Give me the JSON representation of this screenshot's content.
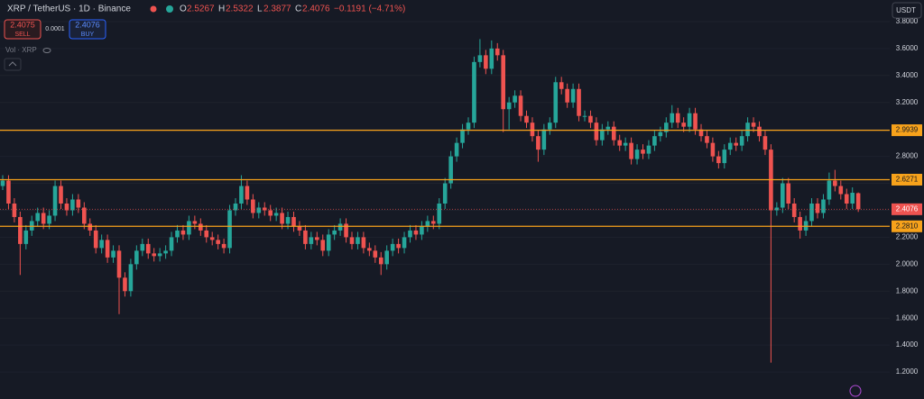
{
  "header": {
    "symbol": "XRP / TetherUS · 1D · Binance",
    "o_label": "O",
    "h_label": "H",
    "l_label": "L",
    "c_label": "C",
    "change": "−0.1191 (−4.71%)",
    "sell_price": "2.4075",
    "sell": "SELL",
    "spread": "0.0001",
    "buy_price": "2.4076",
    "buy": "BUY",
    "volume": "Vol · XRP",
    "currency": "USDT"
  },
  "chart_data": {
    "type": "candlestick",
    "up_color": "#26a69a",
    "down_color": "#ef5350",
    "grid": true,
    "ylim": [
      1.0,
      3.96
    ],
    "yticks": [
      {
        "value": 1.2,
        "label": "1.2000"
      },
      {
        "value": 1.4,
        "label": "1.4000"
      },
      {
        "value": 1.6,
        "label": "1.6000"
      },
      {
        "value": 1.8,
        "label": "1.8000"
      },
      {
        "value": 2.0,
        "label": "2.0000"
      },
      {
        "value": 2.2,
        "label": "2.2000"
      },
      {
        "value": 2.4,
        "label": "2.4000"
      },
      {
        "value": 2.6,
        "label": "2.6000"
      },
      {
        "value": 2.8,
        "label": "2.8000"
      },
      {
        "value": 3.0,
        "label": "3.0000"
      },
      {
        "value": 3.2,
        "label": "3.2000"
      },
      {
        "value": 3.4,
        "label": "3.4000"
      },
      {
        "value": 3.6,
        "label": "3.6000"
      },
      {
        "value": 3.8,
        "label": "3.8000"
      }
    ],
    "price_lines": [
      {
        "value": 2.9939,
        "color": "#f7a21b"
      },
      {
        "value": 2.6271,
        "color": "#f7a21b"
      },
      {
        "value": {
          "value": 2.281,
          "label": "2.2810"
        },
        "color": "#f7a21b"
      }
    ],
    "ohlc": [
      [
        2.58,
        2.66,
        2.55,
        2.62
      ],
      [
        2.62,
        2.66,
        2.41,
        2.45
      ],
      [
        2.45,
        2.49,
        2.31,
        2.35
      ],
      [
        2.35,
        2.39,
        1.92,
        2.15
      ],
      [
        2.15,
        2.29,
        2.11,
        2.25
      ],
      [
        2.25,
        2.36,
        2.21,
        2.32
      ],
      [
        2.32,
        2.42,
        2.28,
        2.38
      ],
      [
        2.38,
        2.42,
        2.26,
        2.3
      ],
      [
        2.3,
        2.4,
        2.26,
        2.36
      ],
      [
        2.36,
        2.62,
        2.32,
        2.58
      ],
      [
        2.58,
        2.62,
        2.41,
        2.45
      ],
      [
        2.45,
        2.49,
        2.36,
        2.4
      ],
      [
        2.4,
        2.52,
        2.36,
        2.48
      ],
      [
        2.48,
        2.52,
        2.38,
        2.42
      ],
      [
        2.42,
        2.46,
        2.26,
        2.3
      ],
      [
        2.3,
        2.34,
        2.21,
        2.25
      ],
      [
        2.25,
        2.29,
        2.08,
        2.12
      ],
      [
        2.12,
        2.22,
        2.08,
        2.18
      ],
      [
        2.18,
        2.22,
        2.01,
        2.05
      ],
      [
        2.05,
        2.14,
        2.01,
        2.1
      ],
      [
        2.1,
        2.14,
        1.63,
        1.9
      ],
      [
        1.9,
        1.94,
        1.76,
        1.8
      ],
      [
        1.8,
        2.04,
        1.76,
        2.0
      ],
      [
        2.0,
        2.14,
        1.96,
        2.1
      ],
      [
        2.1,
        2.19,
        2.06,
        2.15
      ],
      [
        2.15,
        2.19,
        2.04,
        2.08
      ],
      [
        2.08,
        2.12,
        2.02,
        2.06
      ],
      [
        2.06,
        2.12,
        2.02,
        2.08
      ],
      [
        2.08,
        2.14,
        2.04,
        2.1
      ],
      [
        2.1,
        2.24,
        2.06,
        2.2
      ],
      [
        2.2,
        2.29,
        2.16,
        2.25
      ],
      [
        2.25,
        2.29,
        2.18,
        2.22
      ],
      [
        2.22,
        2.36,
        2.18,
        2.32
      ],
      [
        2.32,
        2.36,
        2.26,
        2.3
      ],
      [
        2.3,
        2.34,
        2.21,
        2.25
      ],
      [
        2.25,
        2.29,
        2.16,
        2.2
      ],
      [
        2.2,
        2.24,
        2.14,
        2.18
      ],
      [
        2.18,
        2.22,
        2.11,
        2.15
      ],
      [
        2.15,
        2.19,
        2.08,
        2.12
      ],
      [
        2.12,
        2.44,
        2.08,
        2.4
      ],
      [
        2.4,
        2.49,
        2.36,
        2.45
      ],
      [
        2.45,
        2.66,
        2.41,
        2.58
      ],
      [
        2.58,
        2.62,
        2.44,
        2.48
      ],
      [
        2.48,
        2.52,
        2.34,
        2.38
      ],
      [
        2.38,
        2.46,
        2.34,
        2.42
      ],
      [
        2.42,
        2.46,
        2.36,
        2.4
      ],
      [
        2.4,
        2.44,
        2.32,
        2.36
      ],
      [
        2.36,
        2.42,
        2.32,
        2.38
      ],
      [
        2.38,
        2.42,
        2.26,
        2.3
      ],
      [
        2.3,
        2.39,
        2.26,
        2.35
      ],
      [
        2.35,
        2.39,
        2.24,
        2.28
      ],
      [
        2.28,
        2.32,
        2.21,
        2.25
      ],
      [
        2.25,
        2.29,
        2.11,
        2.15
      ],
      [
        2.15,
        2.24,
        2.11,
        2.2
      ],
      [
        2.2,
        2.24,
        2.14,
        2.18
      ],
      [
        2.18,
        2.22,
        2.06,
        2.1
      ],
      [
        2.1,
        2.26,
        2.06,
        2.22
      ],
      [
        2.22,
        2.29,
        2.18,
        2.25
      ],
      [
        2.25,
        2.34,
        2.21,
        2.3
      ],
      [
        2.3,
        2.34,
        2.16,
        2.2
      ],
      [
        2.2,
        2.24,
        2.11,
        2.15
      ],
      [
        2.15,
        2.24,
        2.11,
        2.2
      ],
      [
        2.2,
        2.24,
        2.08,
        2.12
      ],
      [
        2.12,
        2.16,
        2.06,
        2.1
      ],
      [
        2.1,
        2.14,
        2.01,
        2.05
      ],
      [
        2.05,
        2.09,
        1.92,
        2.0
      ],
      [
        2.0,
        2.14,
        1.96,
        2.1
      ],
      [
        2.1,
        2.19,
        2.06,
        2.15
      ],
      [
        2.15,
        2.19,
        2.08,
        2.12
      ],
      [
        2.12,
        2.24,
        2.08,
        2.2
      ],
      [
        2.2,
        2.29,
        2.16,
        2.25
      ],
      [
        2.25,
        2.29,
        2.18,
        2.22
      ],
      [
        2.22,
        2.32,
        2.18,
        2.28
      ],
      [
        2.28,
        2.36,
        2.24,
        2.32
      ],
      [
        2.32,
        2.36,
        2.26,
        2.3
      ],
      [
        2.3,
        2.49,
        2.26,
        2.45
      ],
      [
        2.45,
        2.64,
        2.41,
        2.6
      ],
      [
        2.6,
        2.84,
        2.56,
        2.8
      ],
      [
        2.8,
        2.94,
        2.76,
        2.9
      ],
      [
        2.9,
        3.04,
        2.86,
        3.0
      ],
      [
        3.0,
        3.09,
        2.96,
        3.05
      ],
      [
        3.05,
        3.54,
        3.01,
        3.5
      ],
      [
        3.5,
        3.67,
        3.46,
        3.55
      ],
      [
        3.55,
        3.59,
        3.41,
        3.45
      ],
      [
        3.45,
        3.66,
        3.41,
        3.6
      ],
      [
        3.6,
        3.64,
        3.51,
        3.55
      ],
      [
        3.55,
        3.59,
        2.98,
        3.15
      ],
      [
        3.15,
        3.24,
        3.0,
        3.2
      ],
      [
        3.2,
        3.29,
        3.16,
        3.25
      ],
      [
        3.25,
        3.29,
        3.06,
        3.1
      ],
      [
        3.1,
        3.14,
        3.01,
        3.05
      ],
      [
        3.05,
        3.09,
        2.91,
        2.95
      ],
      [
        2.95,
        2.99,
        2.76,
        2.85
      ],
      [
        2.85,
        3.04,
        2.81,
        3.0
      ],
      [
        3.0,
        3.09,
        2.96,
        3.05
      ],
      [
        3.05,
        3.39,
        3.01,
        3.35
      ],
      [
        3.35,
        3.39,
        3.26,
        3.3
      ],
      [
        3.3,
        3.34,
        3.16,
        3.2
      ],
      [
        3.2,
        3.34,
        3.16,
        3.3
      ],
      [
        3.3,
        3.34,
        3.06,
        3.1
      ],
      [
        3.1,
        3.14,
        3.06,
        3.1
      ],
      [
        3.1,
        3.14,
        3.01,
        3.05
      ],
      [
        3.05,
        3.09,
        2.88,
        2.92
      ],
      [
        2.92,
        3.04,
        2.88,
        3.0
      ],
      [
        3.0,
        3.06,
        2.96,
        3.02
      ],
      [
        3.02,
        3.06,
        2.88,
        2.92
      ],
      [
        2.92,
        2.96,
        2.84,
        2.88
      ],
      [
        2.88,
        2.94,
        2.84,
        2.9
      ],
      [
        2.9,
        2.94,
        2.74,
        2.78
      ],
      [
        2.78,
        2.89,
        2.74,
        2.85
      ],
      [
        2.85,
        2.89,
        2.78,
        2.82
      ],
      [
        2.82,
        2.92,
        2.78,
        2.88
      ],
      [
        2.88,
        2.99,
        2.84,
        2.95
      ],
      [
        2.95,
        3.02,
        2.91,
        2.98
      ],
      [
        2.98,
        3.09,
        2.94,
        3.05
      ],
      [
        3.05,
        3.18,
        3.01,
        3.12
      ],
      [
        3.12,
        3.16,
        3.01,
        3.05
      ],
      [
        3.05,
        3.09,
        2.98,
        3.02
      ],
      [
        3.02,
        3.16,
        2.98,
        3.12
      ],
      [
        3.12,
        3.16,
        2.96,
        3.0
      ],
      [
        3.0,
        3.04,
        2.91,
        2.95
      ],
      [
        2.95,
        2.99,
        2.86,
        2.9
      ],
      [
        2.9,
        2.94,
        2.76,
        2.8
      ],
      [
        2.8,
        2.84,
        2.71,
        2.75
      ],
      [
        2.75,
        2.89,
        2.71,
        2.85
      ],
      [
        2.85,
        2.94,
        2.81,
        2.9
      ],
      [
        2.9,
        2.94,
        2.84,
        2.88
      ],
      [
        2.88,
        2.99,
        2.84,
        2.95
      ],
      [
        2.95,
        3.09,
        2.91,
        3.05
      ],
      [
        3.05,
        3.09,
        2.98,
        3.02
      ],
      [
        3.02,
        3.06,
        2.91,
        2.95
      ],
      [
        2.95,
        2.99,
        2.81,
        2.85
      ],
      [
        2.85,
        2.89,
        1.27,
        2.4
      ],
      [
        2.4,
        2.46,
        2.36,
        2.42
      ],
      [
        2.42,
        2.64,
        2.38,
        2.6
      ],
      [
        2.6,
        2.64,
        2.41,
        2.45
      ],
      [
        2.45,
        2.49,
        2.31,
        2.35
      ],
      [
        2.35,
        2.39,
        2.19,
        2.25
      ],
      [
        2.25,
        2.36,
        2.21,
        2.32
      ],
      [
        2.32,
        2.49,
        2.28,
        2.45
      ],
      [
        2.45,
        2.49,
        2.34,
        2.38
      ],
      [
        2.38,
        2.52,
        2.34,
        2.48
      ],
      [
        2.48,
        2.68,
        2.44,
        2.62
      ],
      [
        2.62,
        2.7,
        2.54,
        2.58
      ],
      [
        2.58,
        2.62,
        2.48,
        2.52
      ],
      [
        2.52,
        2.56,
        2.41,
        2.45
      ],
      [
        2.45,
        2.57,
        2.41,
        2.53
      ],
      [
        2.5267,
        2.5322,
        2.3877,
        2.4076
      ]
    ]
  }
}
